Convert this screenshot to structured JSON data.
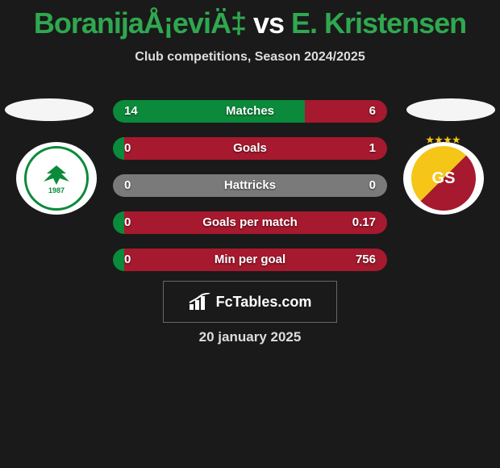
{
  "title": {
    "player1": "BoranijaÅ¡eviÄ‡",
    "vs": " vs ",
    "player2": "E. Kristensen",
    "player1_color": "#2fa84f",
    "vs_color": "#ffffff",
    "player2_color": "#2fa84f"
  },
  "subtitle": "Club competitions, Season 2024/2025",
  "stats": {
    "left_color": "#0a8a3a",
    "right_color": "#a6192e",
    "neutral_color": "#7a7a7a",
    "rows": [
      {
        "label": "Matches",
        "left_val": "14",
        "right_val": "6",
        "left_pct": 70,
        "right_pct": 30
      },
      {
        "label": "Goals",
        "left_val": "0",
        "right_val": "1",
        "left_pct": 4,
        "right_pct": 96
      },
      {
        "label": "Hattricks",
        "left_val": "0",
        "right_val": "0",
        "left_pct": 50,
        "right_pct": 50,
        "neutral": true
      },
      {
        "label": "Goals per match",
        "left_val": "0",
        "right_val": "0.17",
        "left_pct": 4,
        "right_pct": 96
      },
      {
        "label": "Min per goal",
        "left_val": "0",
        "right_val": "756",
        "left_pct": 4,
        "right_pct": 96
      }
    ]
  },
  "clubs": {
    "left": {
      "name": "Konyaspor",
      "accent": "#0a8a3a",
      "year": "1987"
    },
    "right": {
      "name": "Galatasaray",
      "accent1": "#f5c518",
      "accent2": "#a6192e",
      "monogram": "GS",
      "stars": "★★★★"
    }
  },
  "site_logo": {
    "text": "FcTables.com"
  },
  "date": "20 january 2025"
}
